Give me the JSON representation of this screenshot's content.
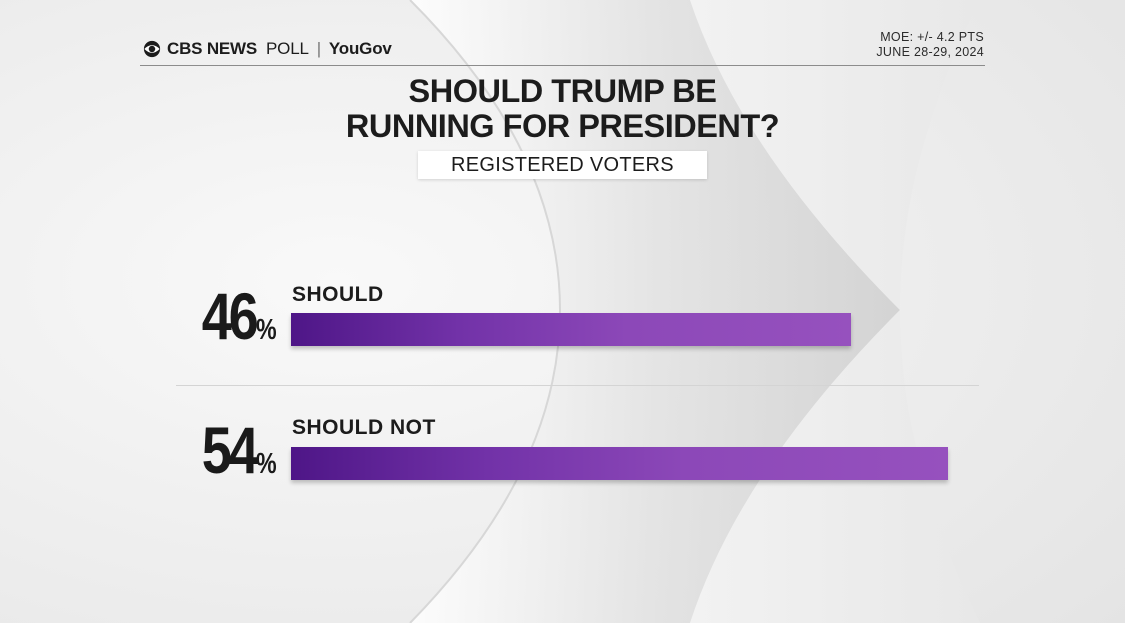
{
  "header": {
    "brand": "CBS NEWS",
    "poll_label": "POLL",
    "divider": "|",
    "partner": "YouGov",
    "moe": "MOE: +/- 4.2 PTS",
    "dates": "JUNE 28-29, 2024"
  },
  "colors": {
    "bar_dark": "#4e1687",
    "bar_light": "#9651be",
    "text": "#1c1c1c"
  },
  "chart_data": {
    "type": "bar",
    "orientation": "horizontal",
    "title_lines": [
      "SHOULD TRUMP BE",
      "RUNNING FOR PRESIDENT?"
    ],
    "subtitle": "REGISTERED VOTERS",
    "categories": [
      "SHOULD",
      "SHOULD NOT"
    ],
    "values": [
      46,
      54
    ],
    "value_labels": [
      "46",
      "54"
    ],
    "unit": "%",
    "xlim": [
      0,
      54
    ]
  }
}
